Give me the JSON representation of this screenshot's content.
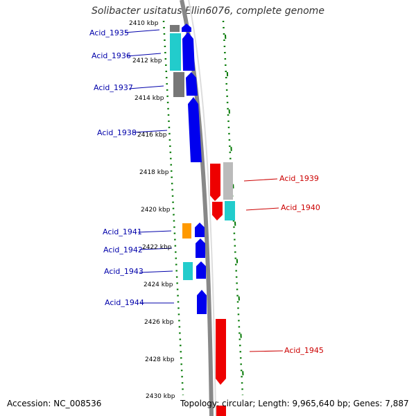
{
  "title": "Solibacter usitatus Ellin6076, complete genome",
  "footer": {
    "accession": "Accession: NC_008536",
    "topology": "Topology: circular; Length: 9,965,640 bp; Genes: 7,887"
  },
  "colors": {
    "forward_gene": "#0000ee",
    "reverse_gene": "#ee0000",
    "forward_label": "#0000aa",
    "reverse_label": "#cc0000",
    "tick": "#007700",
    "backbone": "#888888",
    "cyan": "#22cccc",
    "gray": "#999999",
    "orange": "#ff9900"
  },
  "kbp_labels": [
    "2410 kbp",
    "2412 kbp",
    "2414 kbp",
    "2416 kbp",
    "2418 kbp",
    "2420 kbp",
    "2422 kbp",
    "2424 kbp",
    "2426 kbp",
    "2428 kbp",
    "2430 kbp"
  ],
  "genes": [
    {
      "label": "Acid_1935",
      "strand": "forward"
    },
    {
      "label": "Acid_1936",
      "strand": "forward"
    },
    {
      "label": "Acid_1937",
      "strand": "forward"
    },
    {
      "label": "Acid_1938",
      "strand": "forward"
    },
    {
      "label": "Acid_1939",
      "strand": "reverse"
    },
    {
      "label": "Acid_1940",
      "strand": "reverse"
    },
    {
      "label": "Acid_1941",
      "strand": "forward"
    },
    {
      "label": "Acid_1942",
      "strand": "forward"
    },
    {
      "label": "Acid_1943",
      "strand": "forward"
    },
    {
      "label": "Acid_1944",
      "strand": "forward"
    },
    {
      "label": "Acid_1945",
      "strand": "reverse"
    }
  ]
}
